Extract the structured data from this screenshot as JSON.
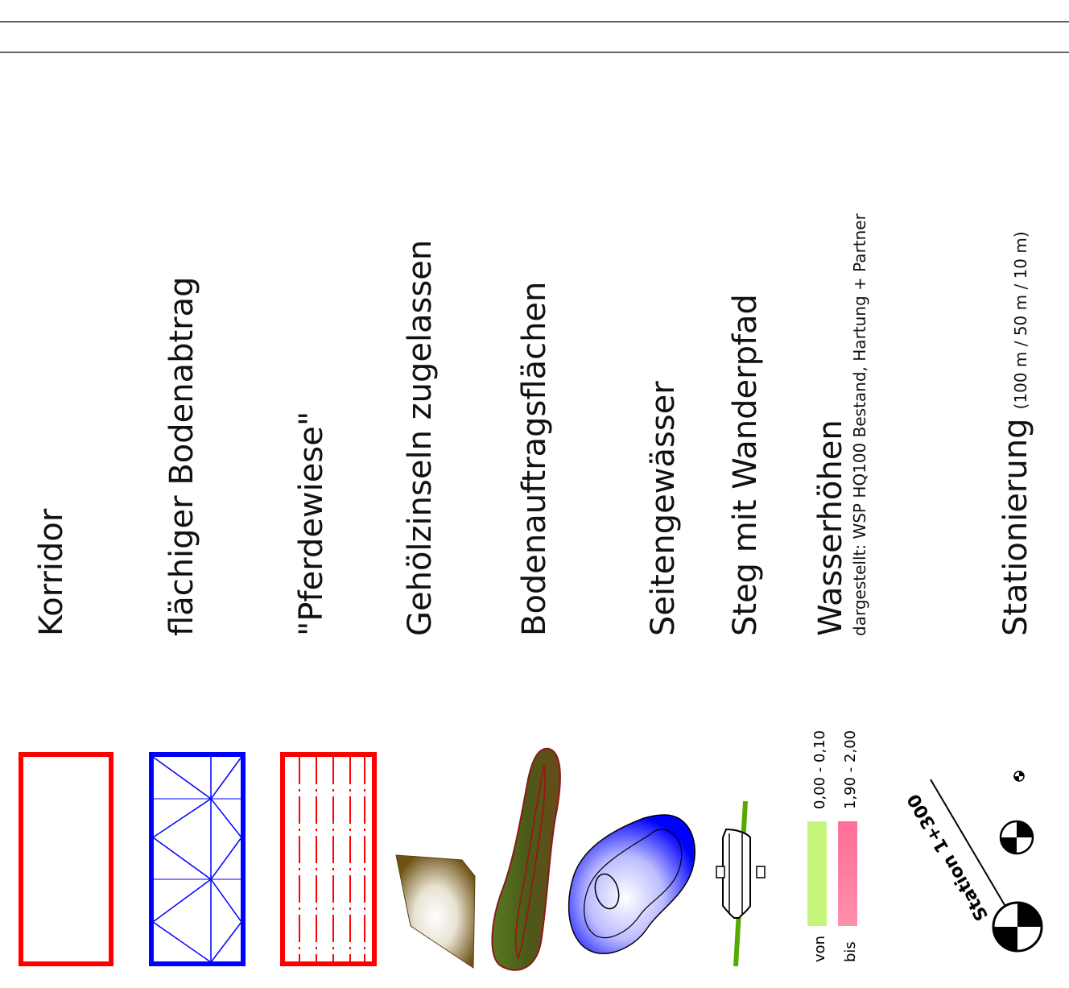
{
  "legend": {
    "items": [
      {
        "id": "korridor",
        "label": "Korridor"
      },
      {
        "id": "bodenabtrag",
        "label": "flächiger Bodenabtrag"
      },
      {
        "id": "pferdewiese",
        "label": "\"Pferdewiese\""
      },
      {
        "id": "gehoelzinseln",
        "label": "Gehölzinseln zugelassen"
      },
      {
        "id": "bodenauftrag",
        "label": "Bodenauftragsflächen"
      },
      {
        "id": "seitengewaesser",
        "label": "Seitengewässer"
      },
      {
        "id": "steg",
        "label": "Steg mit Wanderpfad"
      }
    ],
    "wasserhoehen": {
      "title": "Wasserhöhen",
      "subtitle": "dargestellt: WSP HQ100 Bestand, Hartung + Partner",
      "von_label": "von",
      "von_range": "0,00 - 0,10",
      "von_color": "#c6f57d",
      "bis_label": "bis",
      "bis_range": "1,90 - 2,00",
      "bis_color": "#f7819c"
    },
    "stationierung": {
      "title": "Stationierung",
      "detail": "(100 m / 50 m / 10 m)",
      "marker_label": "Station 1+300"
    }
  },
  "colors": {
    "korridor": "#ff0000",
    "bodenabtrag": "#0000ff",
    "pferdewiese": "#ff0000",
    "gehoelz": "#7a5a1a",
    "auftrag_fill": "#4a6a1a",
    "auftrag_edge": "#8b1a1a",
    "gewaesser": "#0000ff",
    "steg": "#55aa00"
  }
}
